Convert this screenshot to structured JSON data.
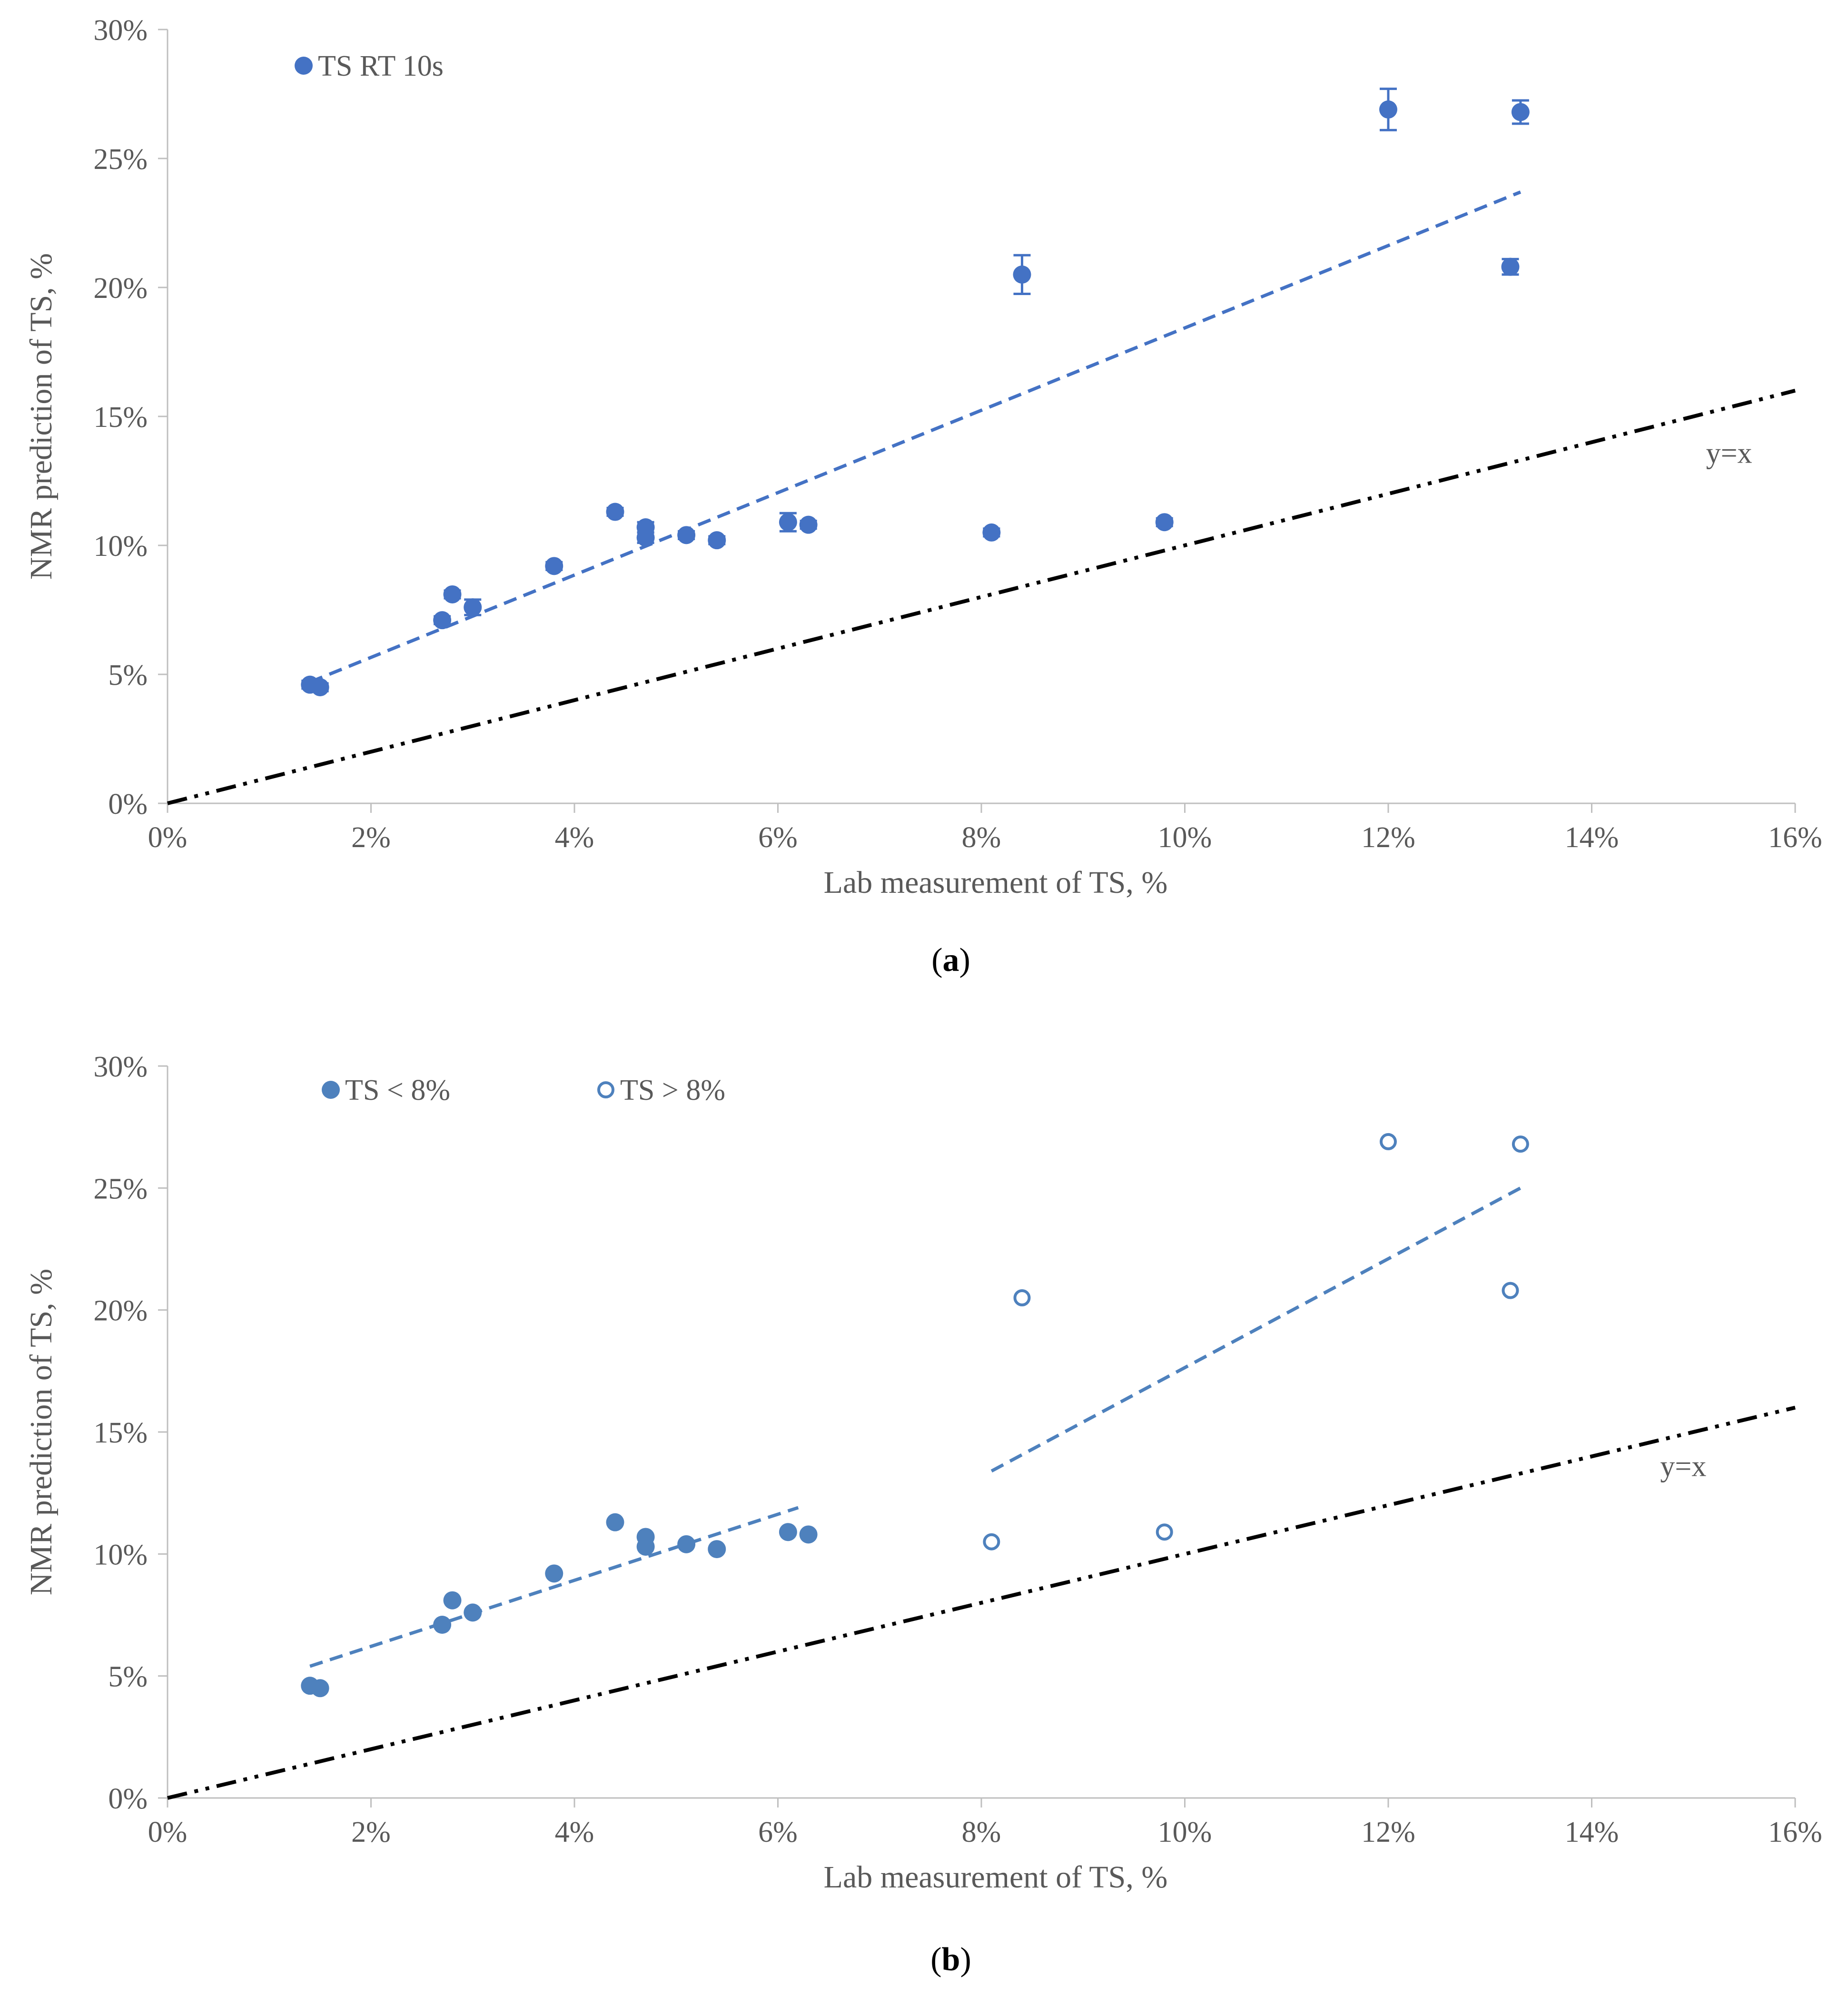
{
  "chart_data": [
    {
      "id": "a",
      "type": "scatter",
      "caption_letter": "a",
      "xlabel": "Lab measurement of TS, %",
      "ylabel": "NMR prediction of TS, %",
      "xlim": [
        0,
        16
      ],
      "ylim": [
        0,
        30
      ],
      "x_ticks": [
        0,
        2,
        4,
        6,
        8,
        10,
        12,
        14,
        16
      ],
      "x_tick_labels": [
        "0%",
        "2%",
        "4%",
        "6%",
        "8%",
        "10%",
        "12%",
        "14%",
        "16%"
      ],
      "y_ticks": [
        0,
        5,
        10,
        15,
        20,
        25,
        30
      ],
      "y_tick_labels": [
        "0%",
        "5%",
        "10%",
        "15%",
        "20%",
        "25%",
        "30%"
      ],
      "series": [
        {
          "name": "TS RT 10s",
          "marker": "filled",
          "color": "#4472C4",
          "x": [
            1.4,
            1.5,
            2.7,
            2.8,
            3.0,
            3.8,
            4.4,
            4.7,
            4.7,
            5.1,
            5.4,
            6.1,
            6.3,
            8.1,
            8.4,
            9.8,
            12.0,
            13.2,
            13.3
          ],
          "y": [
            4.6,
            4.5,
            7.1,
            8.1,
            7.6,
            9.2,
            11.3,
            10.7,
            10.3,
            10.4,
            10.2,
            10.9,
            10.8,
            10.5,
            20.5,
            10.9,
            26.9,
            20.8,
            26.8
          ],
          "err": [
            0.15,
            0.15,
            0.15,
            0.15,
            0.3,
            0.15,
            0.15,
            0.2,
            0.2,
            0.15,
            0.15,
            0.35,
            0.15,
            0.15,
            0.75,
            0.15,
            0.8,
            0.3,
            0.45
          ]
        }
      ],
      "trendlines": [
        {
          "name": "fit-all",
          "color": "#4472C4",
          "style": "dashed",
          "x": [
            1.4,
            13.3
          ],
          "y": [
            4.7,
            23.7
          ]
        }
      ],
      "reference_line": {
        "label": "y=x",
        "color": "#000000",
        "style": "dash-dot-dot",
        "x": [
          0,
          16
        ],
        "y": [
          0,
          16
        ],
        "label_x": 15.35,
        "label_y": 13.2
      },
      "legend": {
        "position": "top-left"
      }
    },
    {
      "id": "b",
      "type": "scatter",
      "caption_letter": "b",
      "xlabel": "Lab measurement of TS, %",
      "ylabel": "NMR prediction of TS, %",
      "xlim": [
        0,
        16
      ],
      "ylim": [
        0,
        30
      ],
      "x_ticks": [
        0,
        2,
        4,
        6,
        8,
        10,
        12,
        14,
        16
      ],
      "x_tick_labels": [
        "0%",
        "2%",
        "4%",
        "6%",
        "8%",
        "10%",
        "12%",
        "14%",
        "16%"
      ],
      "y_ticks": [
        0,
        5,
        10,
        15,
        20,
        25,
        30
      ],
      "y_tick_labels": [
        "0%",
        "5%",
        "10%",
        "15%",
        "20%",
        "25%",
        "30%"
      ],
      "series": [
        {
          "name": "TS < 8%",
          "marker": "filled",
          "color": "#4E81BD",
          "x": [
            1.4,
            1.5,
            2.7,
            2.8,
            3.0,
            3.8,
            4.4,
            4.7,
            4.7,
            5.1,
            5.4,
            6.1,
            6.3
          ],
          "y": [
            4.6,
            4.5,
            7.1,
            8.1,
            7.6,
            9.2,
            11.3,
            10.7,
            10.3,
            10.4,
            10.2,
            10.9,
            10.8
          ]
        },
        {
          "name": "TS > 8%",
          "marker": "open",
          "color": "#4E81BD",
          "x": [
            8.1,
            8.4,
            9.8,
            12.0,
            13.2,
            13.3
          ],
          "y": [
            10.5,
            20.5,
            10.9,
            26.9,
            20.8,
            26.8
          ]
        }
      ],
      "trendlines": [
        {
          "name": "fit-low",
          "color": "#4E81BD",
          "style": "dashed",
          "x": [
            1.4,
            6.2
          ],
          "y": [
            5.4,
            11.9
          ]
        },
        {
          "name": "fit-high",
          "color": "#4E81BD",
          "style": "dashed",
          "x": [
            8.1,
            13.3
          ],
          "y": [
            13.4,
            25.0
          ]
        }
      ],
      "reference_line": {
        "label": "y=x",
        "color": "#000000",
        "style": "dash-dot-dot",
        "x": [
          0,
          16
        ],
        "y": [
          0,
          16
        ],
        "label_x": 14.9,
        "label_y": 13.2
      },
      "legend": {
        "position": "top-left"
      }
    }
  ]
}
